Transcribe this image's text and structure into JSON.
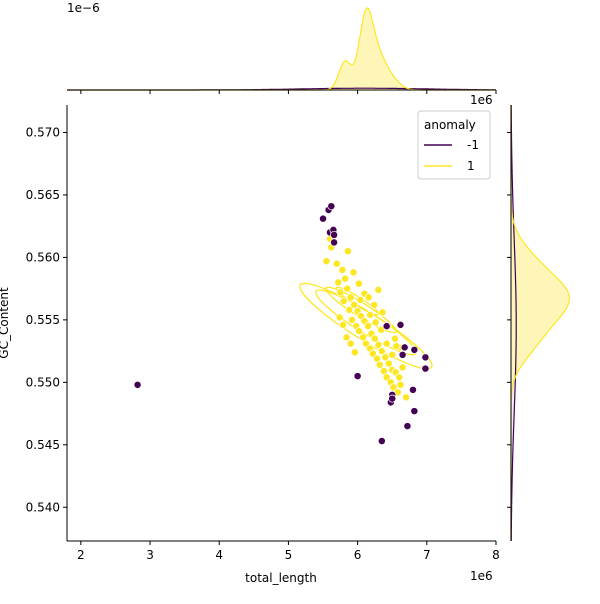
{
  "chart_data": {
    "type": "scatter",
    "xlabel": "total_length",
    "ylabel": "GC_Content",
    "x_offset_label": "1e6",
    "y_offset_label_right": "1e6",
    "top_marginal_offset_label": "1e−6",
    "xlim": [
      1.8,
      8.0
    ],
    "ylim": [
      0.5373,
      0.5722
    ],
    "xticks": [
      "2",
      "3",
      "4",
      "5",
      "6",
      "7",
      "8"
    ],
    "yticks": [
      "0.540",
      "0.545",
      "0.550",
      "0.555",
      "0.560",
      "0.565",
      "0.570"
    ],
    "legend": {
      "title": "anomaly",
      "placement": "top-right",
      "entries": [
        "-1",
        "1"
      ]
    },
    "colors": {
      "anomaly_-1": "#440154",
      "anomaly_1": "#fde725",
      "kde_fill_1": "#fdf6b8"
    },
    "series": [
      {
        "name": "-1",
        "color": "#440154",
        "x": [
          2.82,
          5.5,
          5.58,
          5.62,
          5.6,
          5.65,
          5.66,
          5.66,
          6.0,
          6.35,
          6.48,
          6.5,
          6.5,
          6.65,
          6.68,
          6.72,
          6.8,
          6.82,
          6.82,
          6.98,
          6.98,
          6.42,
          6.62
        ],
        "y": [
          0.5498,
          0.5631,
          0.5638,
          0.5641,
          0.562,
          0.5622,
          0.5612,
          0.5618,
          0.5505,
          0.5453,
          0.5484,
          0.549,
          0.5487,
          0.5522,
          0.5528,
          0.5465,
          0.5494,
          0.5477,
          0.5526,
          0.552,
          0.5511,
          0.5545,
          0.5546
        ]
      },
      {
        "name": "1",
        "color": "#fde725",
        "x": [
          5.55,
          5.6,
          5.62,
          5.7,
          5.72,
          5.75,
          5.78,
          5.8,
          5.82,
          5.85,
          5.88,
          5.9,
          5.92,
          5.95,
          5.98,
          6.0,
          6.02,
          6.05,
          6.08,
          6.1,
          6.12,
          6.15,
          6.18,
          6.2,
          6.22,
          6.25,
          6.28,
          6.3,
          6.32,
          6.35,
          6.38,
          6.4,
          6.42,
          6.45,
          6.48,
          6.5,
          6.52,
          6.55,
          6.58,
          6.6,
          6.62,
          6.65,
          5.74,
          5.79,
          5.84,
          5.9,
          5.96,
          6.04,
          6.1,
          6.16,
          6.24,
          6.3,
          6.36,
          6.44,
          6.54,
          6.6,
          6.7,
          5.86,
          5.94,
          6.02,
          6.18,
          6.26,
          6.34,
          6.42,
          6.5,
          6.56
        ],
        "y": [
          0.5597,
          0.5615,
          0.5608,
          0.5595,
          0.558,
          0.5572,
          0.559,
          0.5565,
          0.5583,
          0.5575,
          0.5558,
          0.5568,
          0.555,
          0.5562,
          0.5545,
          0.5557,
          0.5541,
          0.5553,
          0.5536,
          0.5549,
          0.5531,
          0.5545,
          0.5527,
          0.5539,
          0.5523,
          0.5535,
          0.5519,
          0.553,
          0.5514,
          0.5525,
          0.5509,
          0.552,
          0.5504,
          0.5515,
          0.55,
          0.551,
          0.5496,
          0.5508,
          0.5492,
          0.5504,
          0.5498,
          0.5512,
          0.5552,
          0.5546,
          0.5536,
          0.5531,
          0.5524,
          0.5566,
          0.5571,
          0.5568,
          0.5562,
          0.5574,
          0.5556,
          0.5545,
          0.5535,
          0.5528,
          0.5488,
          0.5605,
          0.5588,
          0.5579,
          0.5554,
          0.5548,
          0.5542,
          0.5531,
          0.5522,
          0.5529
        ]
      }
    ]
  }
}
